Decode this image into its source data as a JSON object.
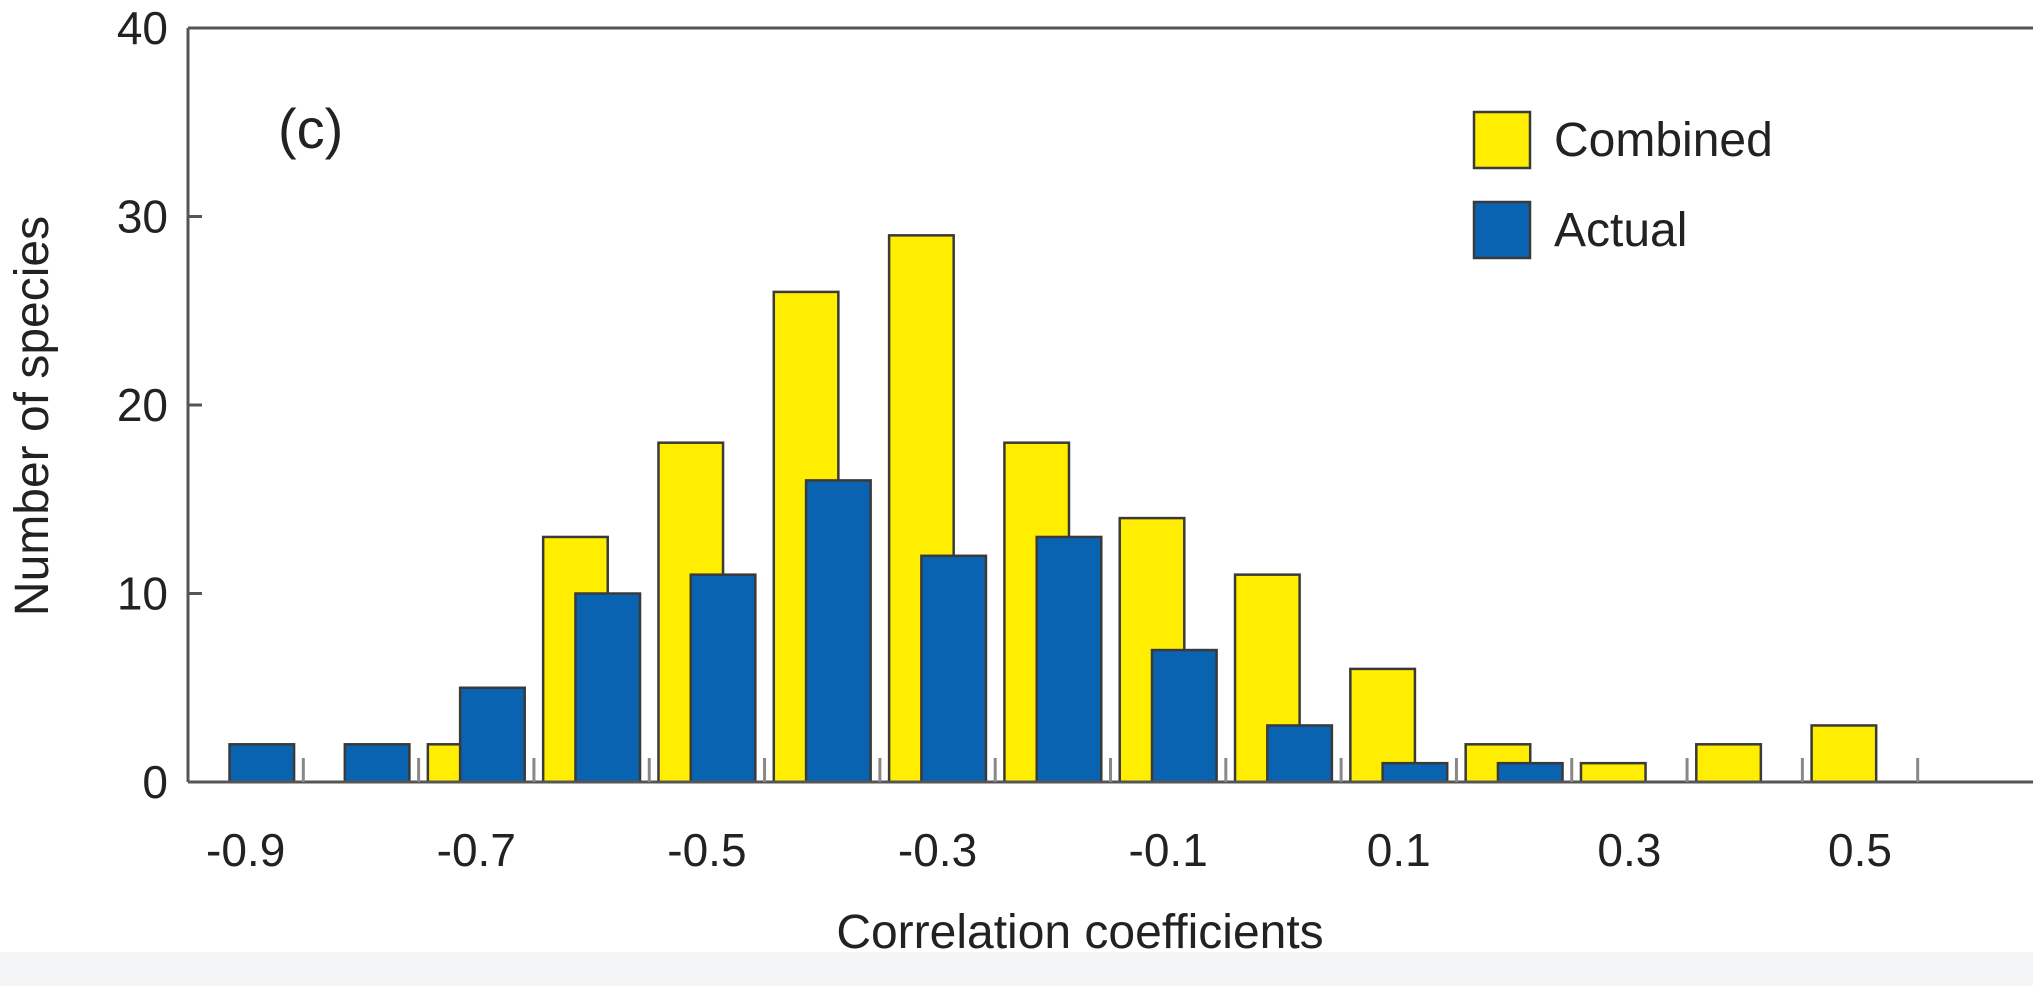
{
  "chart_data": {
    "type": "bar",
    "panel_label": "(c)",
    "xlabel": "Correlation coefficients",
    "ylabel": "Number of species",
    "xlim": [
      -0.95,
      0.65
    ],
    "ylim": [
      0,
      40
    ],
    "yticks": [
      0,
      10,
      20,
      30,
      40
    ],
    "xtick_labels": [
      "-0.9",
      "-0.7",
      "-0.5",
      "-0.3",
      "-0.1",
      "0.1",
      "0.3",
      "0.5"
    ],
    "xtick_values": [
      -0.9,
      -0.7,
      -0.5,
      -0.3,
      -0.1,
      0.1,
      0.3,
      0.5
    ],
    "categories": [
      -0.9,
      -0.8,
      -0.7,
      -0.6,
      -0.5,
      -0.4,
      -0.3,
      -0.2,
      -0.1,
      0.0,
      0.1,
      0.2,
      0.3,
      0.4,
      0.5
    ],
    "legend_position": "top-right",
    "grid": false,
    "series": [
      {
        "name": "Combined",
        "color": "#ffee00",
        "values": [
          0,
          0,
          2,
          13,
          18,
          26,
          29,
          18,
          14,
          11,
          6,
          2,
          1,
          2,
          3
        ]
      },
      {
        "name": "Actual",
        "color": "#0a63b0",
        "values": [
          2,
          2,
          5,
          10,
          11,
          16,
          12,
          13,
          7,
          3,
          1,
          1,
          0,
          0,
          0
        ]
      }
    ]
  }
}
